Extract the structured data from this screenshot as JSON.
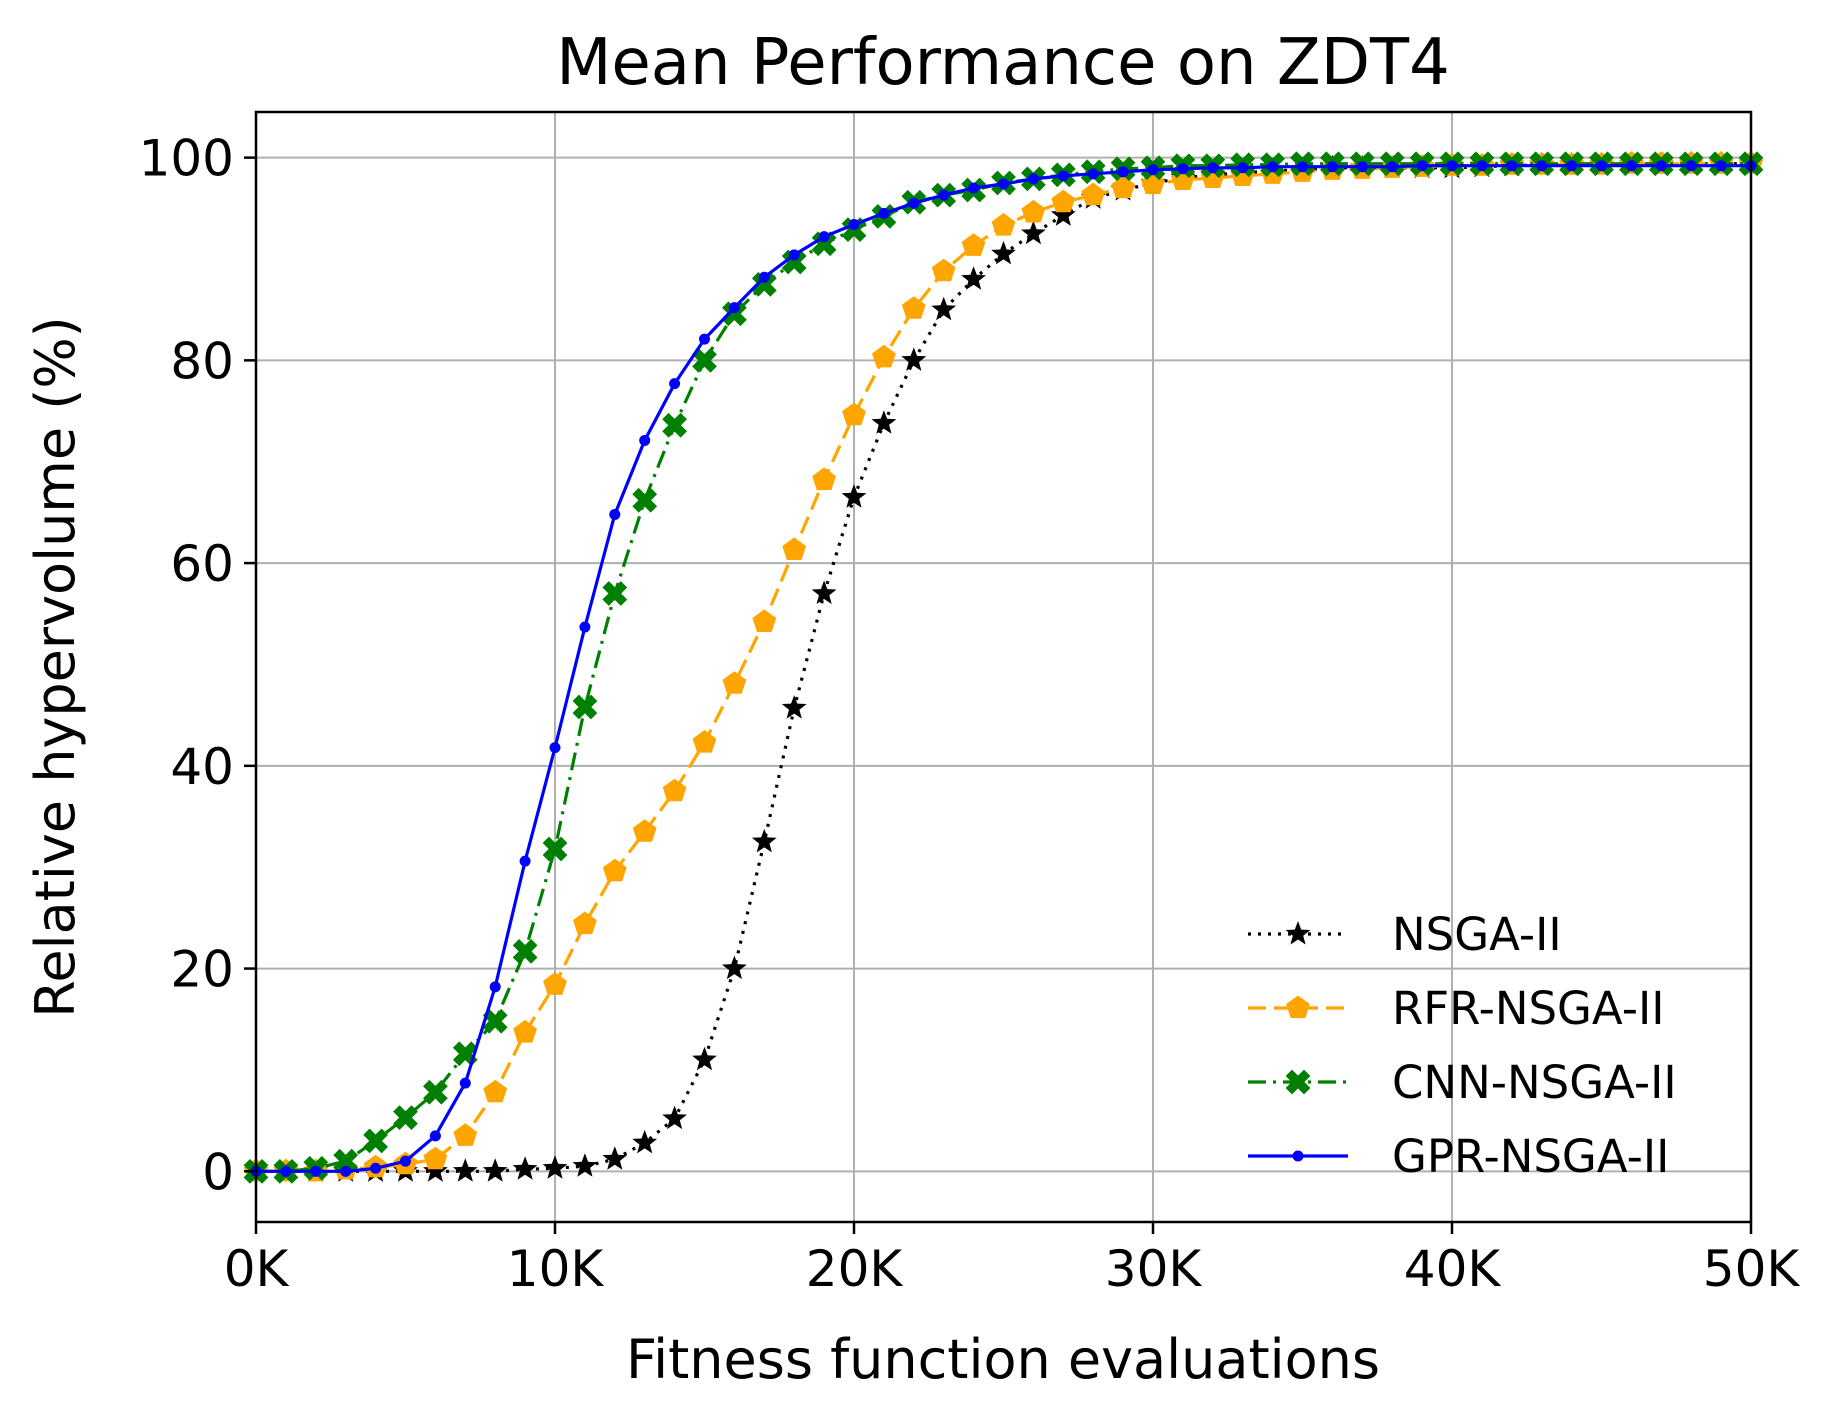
{
  "chart_data": {
    "type": "line",
    "title": "Mean Performance on ZDT4",
    "xlabel": "Fitness function evaluations",
    "ylabel": "Relative hypervolume (%)",
    "xlim": [
      0,
      50000
    ],
    "ylim": [
      -5,
      104.5
    ],
    "grid": true,
    "legend_position": "lower-right",
    "x_ticks": [
      0,
      10000,
      20000,
      30000,
      40000,
      50000
    ],
    "x_tick_labels": [
      "0K",
      "10K",
      "20K",
      "30K",
      "40K",
      "50K"
    ],
    "y_ticks": [
      0,
      20,
      40,
      60,
      80,
      100
    ],
    "y_tick_labels": [
      "0",
      "20",
      "40",
      "60",
      "80",
      "100"
    ],
    "x": [
      0,
      1000,
      2000,
      3000,
      4000,
      5000,
      6000,
      7000,
      8000,
      9000,
      10000,
      11000,
      12000,
      13000,
      14000,
      15000,
      16000,
      17000,
      18000,
      19000,
      20000,
      21000,
      22000,
      23000,
      24000,
      25000,
      26000,
      27000,
      28000,
      29000,
      30000,
      31000,
      32000,
      33000,
      34000,
      35000,
      36000,
      37000,
      38000,
      39000,
      40000,
      41000,
      42000,
      43000,
      44000,
      45000,
      46000,
      47000,
      48000,
      49000,
      50000
    ],
    "series": [
      {
        "name": "NSGA-II",
        "color": "#000000",
        "line_style": "dotted",
        "marker": "star",
        "values": [
          0,
          0,
          0,
          0,
          0,
          0,
          0,
          0,
          0,
          0.2,
          0.3,
          0.5,
          1.2,
          2.8,
          5.2,
          11,
          20,
          32.5,
          45.7,
          57,
          66.5,
          73.8,
          80,
          85,
          88,
          90.5,
          92.5,
          94.3,
          96,
          96.8,
          97.5,
          98,
          98.3,
          98.5,
          98.7,
          98.8,
          99,
          99,
          99,
          99,
          99,
          99.1,
          99.2,
          99.3,
          99.3,
          99.3,
          99.3,
          99.3,
          99.4,
          99.4,
          99.4
        ]
      },
      {
        "name": "RFR-NSGA-II",
        "color": "#FFA500",
        "line_style": "dashed",
        "marker": "pentagon",
        "values": [
          0,
          0,
          0,
          0.2,
          0.4,
          0.7,
          1.2,
          3.5,
          7.8,
          13.7,
          18.4,
          24.4,
          29.6,
          33.5,
          37.5,
          42.3,
          48.1,
          54.2,
          61.3,
          68.2,
          74.6,
          80.3,
          85.1,
          88.8,
          91.3,
          93.3,
          94.6,
          95.6,
          96.3,
          97,
          97.4,
          97.8,
          98,
          98.2,
          98.4,
          98.6,
          98.8,
          98.9,
          99,
          99.1,
          99.2,
          99.2,
          99.3,
          99.3,
          99.3,
          99.3,
          99.4,
          99.4,
          99.4,
          99.4,
          99.4
        ]
      },
      {
        "name": "CNN-NSGA-II",
        "color": "#008000",
        "line_style": "dashdot",
        "marker": "x-filled",
        "values": [
          0,
          0,
          0.3,
          1,
          3,
          5.3,
          7.8,
          11.6,
          14.8,
          21.7,
          31.8,
          45.8,
          57,
          66.2,
          73.6,
          80,
          84.6,
          87.5,
          89.7,
          91.5,
          92.9,
          94.2,
          95.6,
          96.3,
          96.8,
          97.5,
          97.9,
          98.3,
          98.6,
          98.9,
          99,
          99.2,
          99.2,
          99.3,
          99.3,
          99.4,
          99.4,
          99.4,
          99.4,
          99.4,
          99.4,
          99.4,
          99.4,
          99.4,
          99.4,
          99.4,
          99.4,
          99.4,
          99.4,
          99.4,
          99.4
        ]
      },
      {
        "name": "GPR-NSGA-II",
        "color": "#0000FF",
        "line_style": "solid",
        "marker": "dot",
        "values": [
          0,
          0,
          0,
          0,
          0.3,
          1,
          3.5,
          8.7,
          18.2,
          30.6,
          41.8,
          53.7,
          64.8,
          72.1,
          77.7,
          82.1,
          85.2,
          88.2,
          90.4,
          92.2,
          93.4,
          94.5,
          95.5,
          96.3,
          97,
          97.4,
          97.9,
          98.2,
          98.4,
          98.6,
          98.8,
          98.9,
          99,
          99,
          99.1,
          99.1,
          99.1,
          99.1,
          99.1,
          99.2,
          99.2,
          99.2,
          99.2,
          99.2,
          99.2,
          99.2,
          99.2,
          99.2,
          99.2,
          99.2,
          99.2
        ]
      }
    ]
  }
}
